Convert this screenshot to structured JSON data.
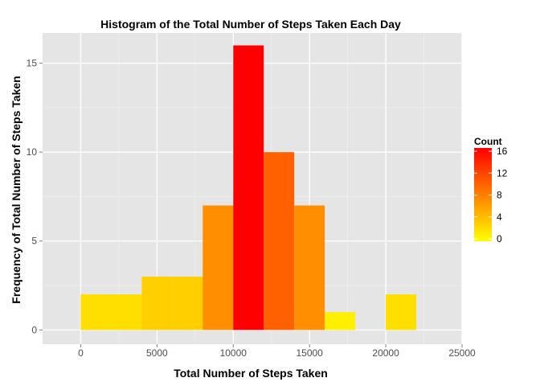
{
  "chart_data": {
    "type": "bar",
    "title": "Histogram of the Total Number of Steps Taken Each Day",
    "xlabel": "Total Number of Steps Taken",
    "ylabel": "Frequency of Total Number of Steps Taken",
    "xlim": [
      -2500,
      25000
    ],
    "ylim": [
      -0.8,
      16.7
    ],
    "x_ticks": [
      0,
      5000,
      10000,
      15000,
      20000,
      25000
    ],
    "y_ticks": [
      0,
      5,
      10,
      15
    ],
    "bin_width": 2000,
    "bins": [
      {
        "start": 0,
        "end": 2000,
        "count": 2
      },
      {
        "start": 2000,
        "end": 4000,
        "count": 2
      },
      {
        "start": 4000,
        "end": 6000,
        "count": 3
      },
      {
        "start": 6000,
        "end": 8000,
        "count": 3
      },
      {
        "start": 8000,
        "end": 10000,
        "count": 7
      },
      {
        "start": 10000,
        "end": 12000,
        "count": 16
      },
      {
        "start": 12000,
        "end": 14000,
        "count": 10
      },
      {
        "start": 14000,
        "end": 16000,
        "count": 7
      },
      {
        "start": 16000,
        "end": 18000,
        "count": 1
      },
      {
        "start": 18000,
        "end": 20000,
        "count": 0
      },
      {
        "start": 20000,
        "end": 22000,
        "count": 2
      }
    ],
    "grid": true,
    "legend": {
      "title": "Count",
      "position": "right",
      "ticks": [
        0,
        4,
        8,
        12,
        16
      ],
      "low_color": "#FFFF00",
      "high_color": "#FF0000"
    },
    "panel_color": "#E5E5E5",
    "grid_color": "#FFFFFF"
  }
}
